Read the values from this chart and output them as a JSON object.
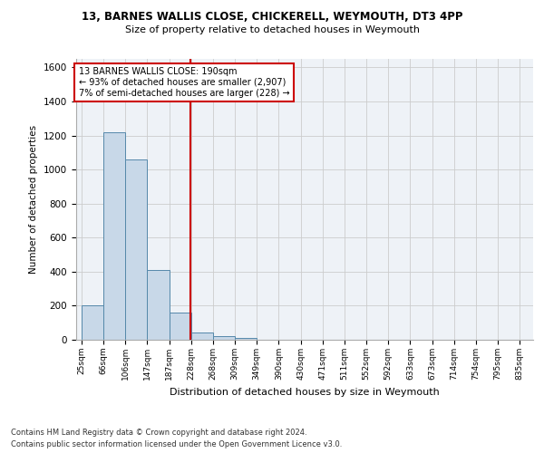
{
  "title_line1": "13, BARNES WALLIS CLOSE, CHICKERELL, WEYMOUTH, DT3 4PP",
  "title_line2": "Size of property relative to detached houses in Weymouth",
  "xlabel": "Distribution of detached houses by size in Weymouth",
  "ylabel": "Number of detached properties",
  "footer_line1": "Contains HM Land Registry data © Crown copyright and database right 2024.",
  "footer_line2": "Contains public sector information licensed under the Open Government Licence v3.0.",
  "categories": [
    "25sqm",
    "66sqm",
    "106sqm",
    "147sqm",
    "187sqm",
    "228sqm",
    "268sqm",
    "309sqm",
    "349sqm",
    "390sqm",
    "430sqm",
    "471sqm",
    "511sqm",
    "552sqm",
    "592sqm",
    "633sqm",
    "673sqm",
    "714sqm",
    "754sqm",
    "795sqm",
    "835sqm"
  ],
  "values": [
    200,
    1220,
    1060,
    410,
    160,
    45,
    22,
    12,
    0,
    0,
    0,
    0,
    0,
    0,
    0,
    0,
    0,
    0,
    0,
    0,
    0
  ],
  "bar_color": "#c8d8e8",
  "bar_edge_color": "#5588aa",
  "annotation_box_text_line1": "13 BARNES WALLIS CLOSE: 190sqm",
  "annotation_box_text_line2": "← 93% of detached houses are smaller (2,907)",
  "annotation_box_text_line3": "7% of semi-detached houses are larger (228) →",
  "annotation_box_color": "#ffffff",
  "annotation_box_edge_color": "#cc0000",
  "property_line_color": "#cc0000",
  "ylim": [
    0,
    1650
  ],
  "bin_width": 41,
  "grid_color": "#cccccc",
  "background_color": "#eef2f7"
}
